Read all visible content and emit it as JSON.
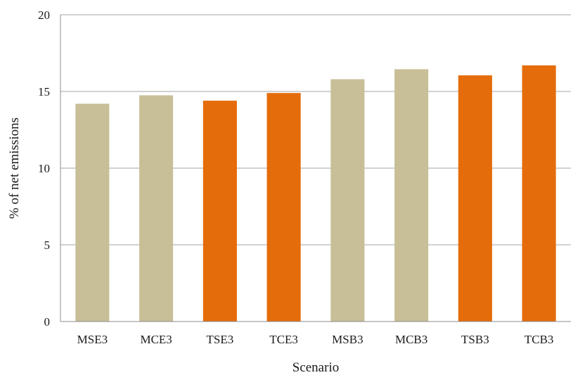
{
  "chart_data": {
    "type": "bar",
    "title": "",
    "xlabel": "Scenario",
    "ylabel": "% of net emissions",
    "categories": [
      "MSE3",
      "MCE3",
      "TSE3",
      "TCE3",
      "MSB3",
      "MCB3",
      "TSB3",
      "TCB3"
    ],
    "values": [
      14.2,
      14.75,
      14.4,
      14.9,
      15.8,
      16.45,
      16.05,
      16.7
    ],
    "bar_colors": [
      "#c8bf98",
      "#c8bf98",
      "#e46c0a",
      "#e46c0a",
      "#c8bf98",
      "#c8bf98",
      "#e46c0a",
      "#e46c0a"
    ],
    "ylim": [
      0,
      20
    ],
    "yticks": [
      0,
      5,
      10,
      15,
      20
    ],
    "grid": true,
    "legend": "none"
  },
  "colors": {
    "model_bar": "#c8bf98",
    "test_bar": "#e46c0a",
    "gridline": "#a6a6a6",
    "axis": "#8c8c8c",
    "text": "#1a1a1a"
  }
}
